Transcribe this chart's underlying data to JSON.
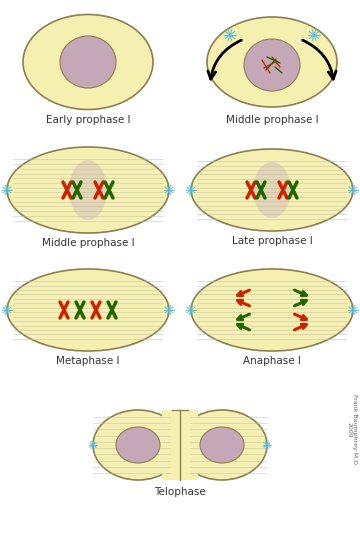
{
  "background": "#ffffff",
  "cell_fill": "#f5f0b0",
  "cell_edge": "#8a8050",
  "nucleus_fill": "#c4a8b8",
  "spindle_color": "#bbbbbb",
  "centrosome_color": "#55bbdd",
  "red_chrom": "#cc2200",
  "green_chrom": "#226600",
  "arrow_color": "#111111",
  "label_color": "#333333",
  "labels": {
    "early": "Early prophase I",
    "middle1": "Middle prophase I",
    "middle2": "Middle prophase I",
    "late": "Late prophase I",
    "metaphase": "Metaphase I",
    "anaphase": "Anaphase I",
    "telophase": "Telophase"
  },
  "credit": "Frank Baumphrey M.D.\n2009",
  "label_fontsize": 7.5
}
